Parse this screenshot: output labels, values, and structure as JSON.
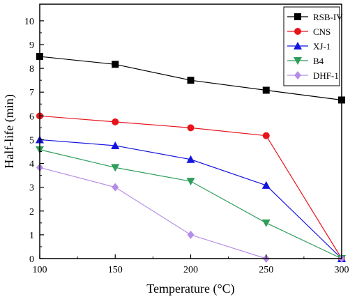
{
  "chart_data": {
    "type": "line",
    "xlabel": "Temperature (°C)",
    "ylabel": "Half-life (min)",
    "x": [
      100,
      150,
      200,
      250,
      300
    ],
    "xticks": [
      100,
      150,
      200,
      250,
      300
    ],
    "yticks": [
      0,
      1,
      2,
      3,
      4,
      5,
      6,
      7,
      8,
      9,
      10
    ],
    "xlim": [
      100,
      300
    ],
    "ylim": [
      0,
      10.7
    ],
    "grid": false,
    "legend_position": "top-right",
    "series": [
      {
        "name": "RSB-IV",
        "color": "#000000",
        "marker": "square",
        "values": [
          8.5,
          8.17,
          7.5,
          7.08,
          6.67
        ]
      },
      {
        "name": "CNS",
        "color": "#e8141b",
        "marker": "circle",
        "values": [
          6.0,
          5.75,
          5.5,
          5.17,
          0.0
        ]
      },
      {
        "name": "XJ-1",
        "color": "#1414e0",
        "marker": "triangle-up",
        "values": [
          5.0,
          4.75,
          4.17,
          3.08,
          0.0
        ]
      },
      {
        "name": "B4",
        "color": "#2e9e5a",
        "marker": "triangle-down",
        "values": [
          4.58,
          3.83,
          3.25,
          1.5,
          0.0
        ]
      },
      {
        "name": "DHF-1",
        "color": "#b48ee6",
        "marker": "diamond",
        "values": [
          3.83,
          3.0,
          1.0,
          0.0,
          0.0
        ]
      }
    ]
  }
}
